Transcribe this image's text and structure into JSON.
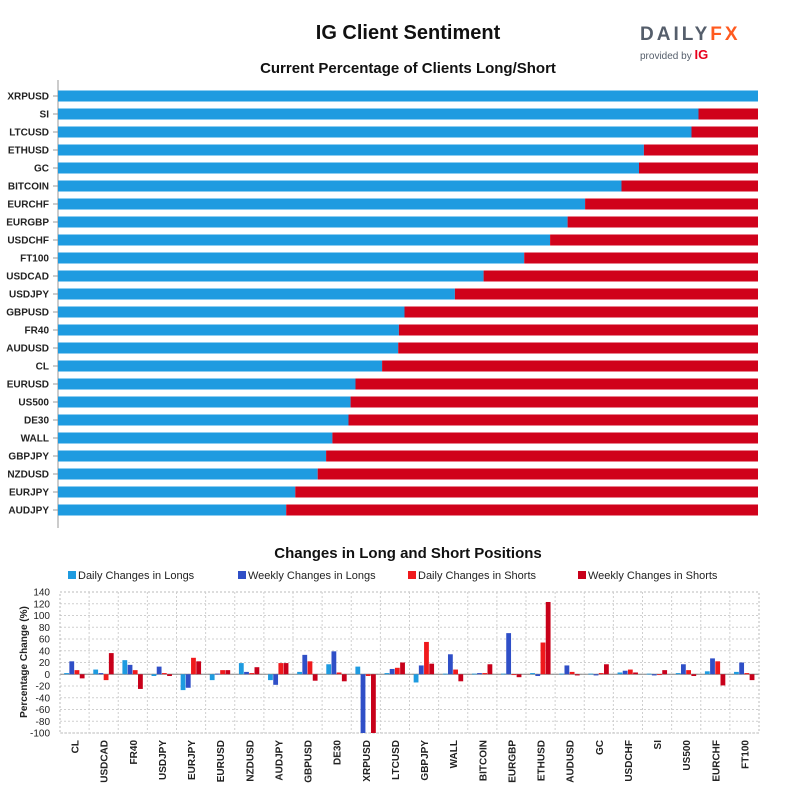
{
  "title": "IG Client Sentiment",
  "logo": {
    "main": "DAILY",
    "fx": "FX",
    "provided": "provided by",
    "ig": "IG"
  },
  "colors": {
    "long": "#1e9be0",
    "short": "#d0021b",
    "daily_long": "#1e9be0",
    "weekly_long": "#2f4fc7",
    "daily_short": "#f0191c",
    "weekly_short": "#c8001a"
  },
  "chart_data": [
    {
      "type": "bar",
      "orientation": "horizontal",
      "stacked": true,
      "title": "Current Percentage of Clients Long/Short",
      "categories": [
        "XRPUSD",
        "SI",
        "LTCUSD",
        "ETHUSD",
        "GC",
        "BITCOIN",
        "EURCHF",
        "EURGBP",
        "USDCHF",
        "FT100",
        "USDCAD",
        "USDJPY",
        "GBPUSD",
        "FR40",
        "AUDUSD",
        "CL",
        "EURUSD",
        "US500",
        "DE30",
        "WALL",
        "GBPJPY",
        "NZDUSD",
        "EURJPY",
        "AUDJPY"
      ],
      "series": [
        {
          "values": [
            100,
            91.5,
            90.5,
            83.7,
            83,
            80.5,
            75.3,
            72.8,
            70.3,
            66.6,
            60.8,
            56.7,
            49.5,
            48.7,
            48.6,
            46.3,
            42.5,
            41.8,
            41.5,
            39.2,
            38.3,
            37.1,
            33.9,
            32.6
          ]
        },
        {
          "values": [
            0,
            8.5,
            9.5,
            16.3,
            17,
            19.5,
            24.7,
            27.2,
            29.7,
            33.4,
            39.2,
            43.3,
            50.5,
            51.3,
            51.4,
            53.7,
            57.5,
            58.2,
            58.5,
            60.8,
            61.7,
            62.9,
            66.1,
            67.4
          ]
        }
      ],
      "xlim": [
        0,
        100
      ]
    },
    {
      "type": "bar",
      "title": "Changes in Long and Short Positions",
      "ylabel": "Percentage Change (%)",
      "ylim": [
        -100,
        140
      ],
      "yticks": [
        140,
        120,
        100,
        80,
        60,
        40,
        20,
        0,
        -20,
        -40,
        -60,
        -80,
        -100
      ],
      "grid": true,
      "legend_position": "top",
      "categories": [
        "CL",
        "USDCAD",
        "FR40",
        "USDJPY",
        "EURJPY",
        "EURUSD",
        "NZDUSD",
        "AUDJPY",
        "GBPUSD",
        "DE30",
        "XRPUSD",
        "LTCUSD",
        "GBPJPY",
        "WALL",
        "BITCOIN",
        "EURGBP",
        "ETHUSD",
        "AUDUSD",
        "GC",
        "USDCHF",
        "SI",
        "US500",
        "EURCHF",
        "FT100"
      ],
      "series": [
        {
          "name": "Daily Changes in Longs",
          "values": [
            2,
            8,
            24,
            -3,
            -27,
            -10,
            19,
            -10,
            4,
            17,
            13,
            2,
            -14,
            1,
            1,
            1,
            2,
            1,
            1,
            3,
            1,
            2,
            5,
            4
          ]
        },
        {
          "name": "Weekly Changes in Longs",
          "values": [
            22,
            2,
            16,
            13,
            -23,
            1,
            4,
            -18,
            33,
            39,
            -100,
            9,
            15,
            34,
            2,
            70,
            -3,
            15,
            -2,
            6,
            -2,
            17,
            27,
            20
          ]
        },
        {
          "name": "Daily Changes in Shorts",
          "values": [
            7,
            -10,
            7,
            2,
            28,
            7,
            2,
            19,
            22,
            3,
            -3,
            11,
            55,
            8,
            2,
            0,
            54,
            4,
            2,
            8,
            0,
            7,
            22,
            2
          ]
        },
        {
          "name": "Weekly Changes in Shorts",
          "values": [
            -7,
            36,
            -25,
            -3,
            22,
            7,
            12,
            19,
            -11,
            -12,
            -100,
            20,
            18,
            -12,
            17,
            -5,
            123,
            -2,
            17,
            3,
            7,
            -3,
            -19,
            -10
          ]
        }
      ]
    }
  ]
}
